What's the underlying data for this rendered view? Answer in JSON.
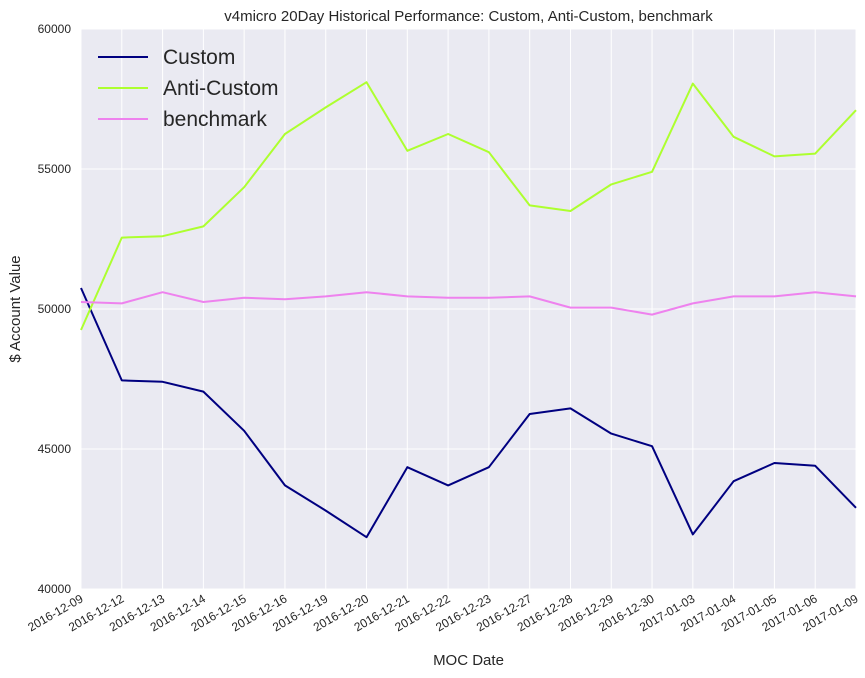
{
  "chart_data": {
    "type": "line",
    "title": "v4micro 20Day Historical Performance: Custom, Anti-Custom, benchmark",
    "xlabel": "MOC Date",
    "ylabel": "$ Account Value",
    "ylim": [
      40000,
      60000
    ],
    "yticks": [
      "40000",
      "45000",
      "50000",
      "55000",
      "60000"
    ],
    "grid": true,
    "legend_position": "top-left",
    "categories": [
      "2016-12-09",
      "2016-12-12",
      "2016-12-13",
      "2016-12-14",
      "2016-12-15",
      "2016-12-16",
      "2016-12-19",
      "2016-12-20",
      "2016-12-21",
      "2016-12-22",
      "2016-12-23",
      "2016-12-27",
      "2016-12-28",
      "2016-12-29",
      "2016-12-30",
      "2017-01-03",
      "2017-01-04",
      "2017-01-05",
      "2017-01-06",
      "2017-01-09"
    ],
    "series": [
      {
        "name": "Custom",
        "color": "#000080",
        "values": [
          50750,
          47450,
          47400,
          47050,
          45650,
          43700,
          42800,
          41850,
          44350,
          43700,
          44350,
          46250,
          46450,
          45550,
          45100,
          41950,
          43850,
          44500,
          44400,
          42900
        ]
      },
      {
        "name": "Anti-Custom",
        "color": "#adff2f",
        "values": [
          49250,
          52550,
          52600,
          52950,
          54350,
          56250,
          57200,
          58100,
          55650,
          56250,
          55600,
          53700,
          53500,
          54450,
          54900,
          58050,
          56150,
          55450,
          55550,
          57100
        ]
      },
      {
        "name": "benchmark",
        "color": "#ee82ee",
        "values": [
          50250,
          50200,
          50600,
          50250,
          50400,
          50350,
          50450,
          50600,
          50450,
          50400,
          50400,
          50450,
          50050,
          50050,
          49800,
          50200,
          50450,
          50450,
          50600,
          50450
        ]
      }
    ]
  }
}
